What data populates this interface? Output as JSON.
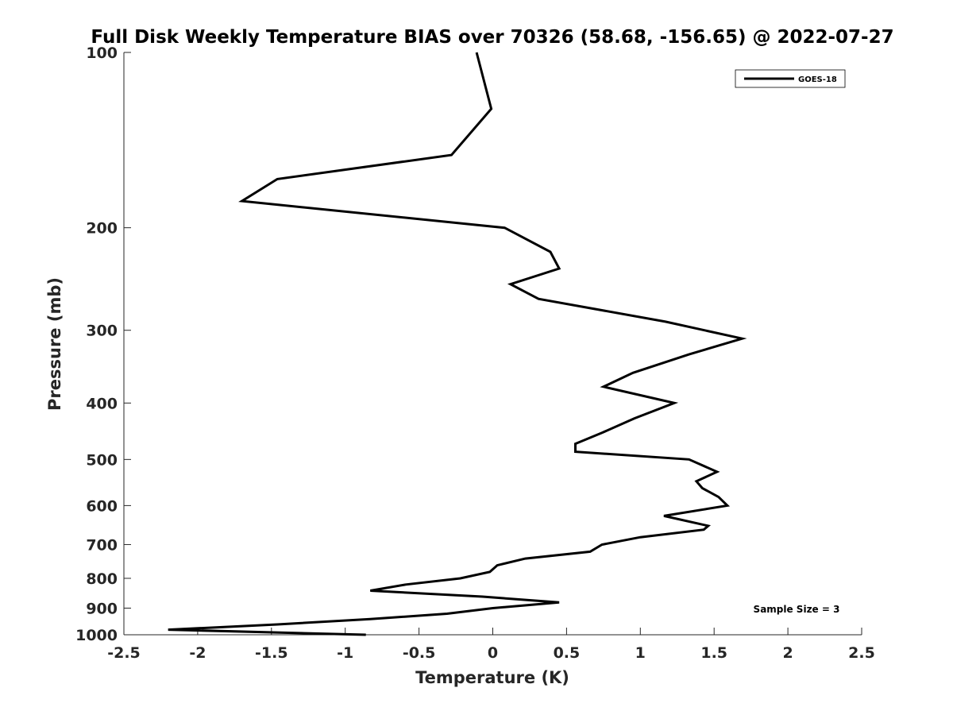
{
  "chart_data": {
    "type": "line",
    "title": "Full Disk Weekly Temperature BIAS over 70326 (58.68, -156.65) @ 2022-07-27",
    "xlabel": "Temperature (K)",
    "ylabel": "Pressure (mb)",
    "xlim": [
      -2.5,
      2.5
    ],
    "ylim": [
      100,
      1000
    ],
    "y_scale": "log",
    "y_direction": "reversed",
    "x_ticks": [
      "-2.5",
      "-2",
      "-1.5",
      "-1",
      "-0.5",
      "0",
      "0.5",
      "1",
      "1.5",
      "2",
      "2.5"
    ],
    "y_ticks": [
      "100",
      "200",
      "300",
      "400",
      "500",
      "600",
      "700",
      "800",
      "900",
      "1000"
    ],
    "grid": false,
    "legend_position": "top-right",
    "annotation": "Sample Size = 3",
    "series": [
      {
        "name": "GOES-18",
        "color": "#000000",
        "points": [
          {
            "t": -0.11,
            "p": 100
          },
          {
            "t": -0.01,
            "p": 125
          },
          {
            "t": -0.28,
            "p": 150
          },
          {
            "t": -1.46,
            "p": 165
          },
          {
            "t": -1.7,
            "p": 180
          },
          {
            "t": 0.08,
            "p": 200
          },
          {
            "t": 0.39,
            "p": 220
          },
          {
            "t": 0.45,
            "p": 235
          },
          {
            "t": 0.12,
            "p": 250
          },
          {
            "t": 0.31,
            "p": 265
          },
          {
            "t": 1.17,
            "p": 290
          },
          {
            "t": 1.69,
            "p": 310
          },
          {
            "t": 1.33,
            "p": 330
          },
          {
            "t": 0.95,
            "p": 355
          },
          {
            "t": 0.75,
            "p": 375
          },
          {
            "t": 1.23,
            "p": 400
          },
          {
            "t": 0.96,
            "p": 425
          },
          {
            "t": 0.74,
            "p": 450
          },
          {
            "t": 0.56,
            "p": 470
          },
          {
            "t": 0.56,
            "p": 485
          },
          {
            "t": 1.33,
            "p": 500
          },
          {
            "t": 1.52,
            "p": 525
          },
          {
            "t": 1.38,
            "p": 545
          },
          {
            "t": 1.42,
            "p": 560
          },
          {
            "t": 1.53,
            "p": 580
          },
          {
            "t": 1.59,
            "p": 600
          },
          {
            "t": 1.16,
            "p": 625
          },
          {
            "t": 1.46,
            "p": 650
          },
          {
            "t": 1.43,
            "p": 660
          },
          {
            "t": 1.0,
            "p": 680
          },
          {
            "t": 0.74,
            "p": 700
          },
          {
            "t": 0.66,
            "p": 720
          },
          {
            "t": 0.22,
            "p": 740
          },
          {
            "t": 0.03,
            "p": 760
          },
          {
            "t": -0.02,
            "p": 780
          },
          {
            "t": -0.22,
            "p": 800
          },
          {
            "t": -0.59,
            "p": 820
          },
          {
            "t": -0.83,
            "p": 840
          },
          {
            "t": -0.07,
            "p": 860
          },
          {
            "t": 0.45,
            "p": 880
          },
          {
            "t": 0.0,
            "p": 900
          },
          {
            "t": -0.31,
            "p": 920
          },
          {
            "t": -0.83,
            "p": 940
          },
          {
            "t": -1.46,
            "p": 960
          },
          {
            "t": -2.2,
            "p": 980
          },
          {
            "t": -0.86,
            "p": 1000
          }
        ]
      }
    ]
  }
}
